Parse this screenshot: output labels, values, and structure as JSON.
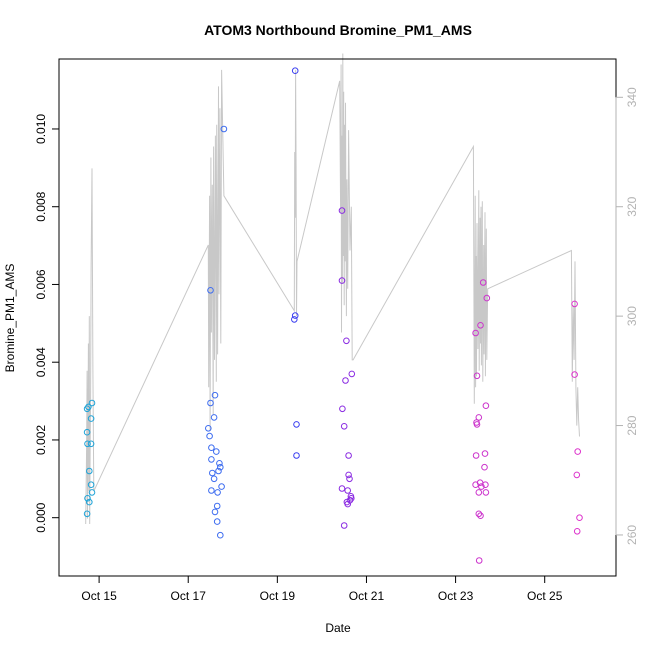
{
  "chart_data": {
    "type": "scatter",
    "title": "ATOM3 Northbound Bromine_PM1_AMS",
    "xlabel": "Date",
    "ylabel": "Bromine_PM1_AMS",
    "xlim": [
      14.1,
      26.6
    ],
    "ylim": [
      -0.0015,
      0.0118
    ],
    "y2lim": [
      252.5,
      347
    ],
    "x_ticks": [
      {
        "value": 15,
        "label": "Oct 15"
      },
      {
        "value": 17,
        "label": "Oct 17"
      },
      {
        "value": 19,
        "label": "Oct 19"
      },
      {
        "value": 21,
        "label": "Oct 21"
      },
      {
        "value": 23,
        "label": "Oct 23"
      },
      {
        "value": 25,
        "label": "Oct 25"
      }
    ],
    "y_ticks": [
      {
        "value": 0.0,
        "label": "0.000"
      },
      {
        "value": 0.002,
        "label": "0.002"
      },
      {
        "value": 0.004,
        "label": "0.004"
      },
      {
        "value": 0.006,
        "label": "0.006"
      },
      {
        "value": 0.008,
        "label": "0.008"
      },
      {
        "value": 0.01,
        "label": "0.010"
      }
    ],
    "y2_ticks": [
      {
        "value": 260,
        "label": "260"
      },
      {
        "value": 280,
        "label": "280"
      },
      {
        "value": 300,
        "label": "300"
      },
      {
        "value": 320,
        "label": "320"
      },
      {
        "value": 340,
        "label": "340"
      }
    ],
    "points": [
      {
        "x": 14.73,
        "y": 0.0028,
        "color": "#1fa4d8"
      },
      {
        "x": 14.73,
        "y": 0.0022,
        "color": "#1fa4d8"
      },
      {
        "x": 14.74,
        "y": 0.0019,
        "color": "#1fa4d8"
      },
      {
        "x": 14.74,
        "y": 0.0005,
        "color": "#1fa4d8"
      },
      {
        "x": 14.73,
        "y": 0.0001,
        "color": "#1fa4d8"
      },
      {
        "x": 14.78,
        "y": 0.0004,
        "color": "#1fa4d8"
      },
      {
        "x": 14.78,
        "y": 0.0012,
        "color": "#1fa4d8"
      },
      {
        "x": 14.76,
        "y": 0.00285,
        "color": "#1fa4d8"
      },
      {
        "x": 14.82,
        "y": 0.0019,
        "color": "#1fa4d8"
      },
      {
        "x": 14.82,
        "y": 0.00255,
        "color": "#1fa4d8"
      },
      {
        "x": 14.84,
        "y": 0.00295,
        "color": "#1fa4d8"
      },
      {
        "x": 14.82,
        "y": 0.00085,
        "color": "#1fa4d8"
      },
      {
        "x": 14.84,
        "y": 0.00065,
        "color": "#1fa4d8"
      },
      {
        "x": 17.5,
        "y": 0.00585,
        "color": "#3e6df0"
      },
      {
        "x": 17.6,
        "y": 0.00315,
        "color": "#3e6df0"
      },
      {
        "x": 17.5,
        "y": 0.00295,
        "color": "#3e6df0"
      },
      {
        "x": 17.58,
        "y": 0.00258,
        "color": "#3e6df0"
      },
      {
        "x": 17.45,
        "y": 0.0023,
        "color": "#3e6df0"
      },
      {
        "x": 17.48,
        "y": 0.0021,
        "color": "#3e6df0"
      },
      {
        "x": 17.52,
        "y": 0.0018,
        "color": "#3e6df0"
      },
      {
        "x": 17.63,
        "y": 0.0017,
        "color": "#3e6df0"
      },
      {
        "x": 17.52,
        "y": 0.0015,
        "color": "#3e6df0"
      },
      {
        "x": 17.7,
        "y": 0.0014,
        "color": "#3e6df0"
      },
      {
        "x": 17.72,
        "y": 0.0013,
        "color": "#3e6df0"
      },
      {
        "x": 17.54,
        "y": 0.00115,
        "color": "#3e6df0"
      },
      {
        "x": 17.68,
        "y": 0.0012,
        "color": "#3e6df0"
      },
      {
        "x": 17.58,
        "y": 0.001,
        "color": "#3e6df0"
      },
      {
        "x": 17.75,
        "y": 0.0008,
        "color": "#3e6df0"
      },
      {
        "x": 17.52,
        "y": 0.0007,
        "color": "#3e6df0"
      },
      {
        "x": 17.66,
        "y": 0.00065,
        "color": "#3e6df0"
      },
      {
        "x": 17.65,
        "y": 0.0003,
        "color": "#3e6df0"
      },
      {
        "x": 17.6,
        "y": 0.00015,
        "color": "#3e6df0"
      },
      {
        "x": 17.65,
        "y": -0.0001,
        "color": "#3e6df0"
      },
      {
        "x": 17.72,
        "y": -0.00045,
        "color": "#3e6df0"
      },
      {
        "x": 17.8,
        "y": 0.01,
        "color": "#3e6df0"
      },
      {
        "x": 19.4,
        "y": 0.0115,
        "color": "#3b3ff0"
      },
      {
        "x": 19.4,
        "y": 0.0052,
        "color": "#3b3ff0"
      },
      {
        "x": 19.38,
        "y": 0.0051,
        "color": "#3b3ff0"
      },
      {
        "x": 19.43,
        "y": 0.0024,
        "color": "#3b3ff0"
      },
      {
        "x": 19.43,
        "y": 0.0016,
        "color": "#3b3ff0"
      },
      {
        "x": 20.45,
        "y": 0.0079,
        "color": "#8a2be2"
      },
      {
        "x": 20.45,
        "y": 0.0061,
        "color": "#8a2be2"
      },
      {
        "x": 20.55,
        "y": 0.00455,
        "color": "#8a2be2"
      },
      {
        "x": 20.67,
        "y": 0.0037,
        "color": "#8a2be2"
      },
      {
        "x": 20.53,
        "y": 0.00353,
        "color": "#8a2be2"
      },
      {
        "x": 20.46,
        "y": 0.0028,
        "color": "#8a2be2"
      },
      {
        "x": 20.5,
        "y": 0.00235,
        "color": "#8a2be2"
      },
      {
        "x": 20.6,
        "y": 0.0016,
        "color": "#8a2be2"
      },
      {
        "x": 20.6,
        "y": 0.0011,
        "color": "#8a2be2"
      },
      {
        "x": 20.62,
        "y": 0.001,
        "color": "#8a2be2"
      },
      {
        "x": 20.45,
        "y": 0.00075,
        "color": "#8a2be2"
      },
      {
        "x": 20.58,
        "y": 0.0007,
        "color": "#8a2be2"
      },
      {
        "x": 20.65,
        "y": 0.00055,
        "color": "#8a2be2"
      },
      {
        "x": 20.66,
        "y": 0.0005,
        "color": "#8a2be2"
      },
      {
        "x": 20.63,
        "y": 0.00045,
        "color": "#8a2be2"
      },
      {
        "x": 20.56,
        "y": 0.0004,
        "color": "#8a2be2"
      },
      {
        "x": 20.58,
        "y": 0.00035,
        "color": "#8a2be2"
      },
      {
        "x": 20.5,
        "y": -0.0002,
        "color": "#8a2be2"
      },
      {
        "x": 23.62,
        "y": 0.00605,
        "color": "#cc33cc"
      },
      {
        "x": 23.7,
        "y": 0.00565,
        "color": "#cc33cc"
      },
      {
        "x": 23.56,
        "y": 0.00495,
        "color": "#cc33cc"
      },
      {
        "x": 23.45,
        "y": 0.00475,
        "color": "#cc33cc"
      },
      {
        "x": 23.48,
        "y": 0.00365,
        "color": "#cc33cc"
      },
      {
        "x": 23.68,
        "y": 0.00288,
        "color": "#cc33cc"
      },
      {
        "x": 23.52,
        "y": 0.00258,
        "color": "#cc33cc"
      },
      {
        "x": 23.47,
        "y": 0.00245,
        "color": "#cc33cc"
      },
      {
        "x": 23.48,
        "y": 0.0024,
        "color": "#cc33cc"
      },
      {
        "x": 23.46,
        "y": 0.0016,
        "color": "#cc33cc"
      },
      {
        "x": 23.66,
        "y": 0.00165,
        "color": "#cc33cc"
      },
      {
        "x": 23.65,
        "y": 0.0013,
        "color": "#cc33cc"
      },
      {
        "x": 23.45,
        "y": 0.00085,
        "color": "#cc33cc"
      },
      {
        "x": 23.55,
        "y": 0.0009,
        "color": "#cc33cc"
      },
      {
        "x": 23.58,
        "y": 0.0008,
        "color": "#cc33cc"
      },
      {
        "x": 23.52,
        "y": 0.00065,
        "color": "#cc33cc"
      },
      {
        "x": 23.67,
        "y": 0.00085,
        "color": "#cc33cc"
      },
      {
        "x": 23.68,
        "y": 0.00065,
        "color": "#cc33cc"
      },
      {
        "x": 23.52,
        "y": 0.0001,
        "color": "#cc33cc"
      },
      {
        "x": 23.56,
        "y": 5e-05,
        "color": "#cc33cc"
      },
      {
        "x": 23.53,
        "y": -0.0011,
        "color": "#cc33cc"
      },
      {
        "x": 25.67,
        "y": 0.0055,
        "color": "#dd33cc"
      },
      {
        "x": 25.67,
        "y": 0.00368,
        "color": "#dd33cc"
      },
      {
        "x": 25.74,
        "y": 0.0017,
        "color": "#dd33cc"
      },
      {
        "x": 25.72,
        "y": 0.0011,
        "color": "#dd33cc"
      },
      {
        "x": 25.78,
        "y": 0.0,
        "color": "#dd33cc"
      },
      {
        "x": 25.73,
        "y": -0.00035,
        "color": "#dd33cc"
      }
    ],
    "secondary_series": {
      "name": "right axis trace",
      "color": "#c8c8c8",
      "x": [
        14.7,
        14.72,
        14.73,
        14.74,
        14.75,
        14.76,
        14.77,
        14.78,
        14.79,
        14.8,
        14.81,
        14.82,
        14.84,
        14.86,
        14.88,
        17.45,
        17.46,
        17.48,
        17.49,
        17.51,
        17.52,
        17.54,
        17.56,
        17.57,
        17.59,
        17.61,
        17.63,
        17.64,
        17.66,
        17.68,
        17.69,
        17.71,
        17.73,
        17.75,
        17.8,
        19.38,
        19.39,
        19.4,
        19.41,
        19.42,
        19.43,
        19.44,
        20.4,
        20.42,
        20.43,
        20.44,
        20.45,
        20.46,
        20.47,
        20.48,
        20.49,
        20.5,
        20.51,
        20.52,
        20.53,
        20.55,
        20.56,
        20.58,
        20.6,
        20.63,
        20.66,
        20.68,
        20.7,
        23.4,
        23.42,
        23.44,
        23.45,
        23.46,
        23.47,
        23.48,
        23.5,
        23.52,
        23.53,
        23.55,
        23.56,
        23.57,
        23.58,
        23.6,
        23.61,
        23.63,
        23.64,
        23.66,
        23.67,
        23.69,
        23.7,
        23.72,
        25.6,
        25.62,
        25.64,
        25.66,
        25.68,
        25.7,
        25.72,
        25.74,
        25.76,
        25.78
      ],
      "y": [
        262,
        276,
        290,
        263,
        281,
        295,
        268,
        300,
        262,
        277,
        285,
        309,
        327,
        290,
        268,
        313,
        287,
        322,
        279,
        329,
        297,
        324,
        282,
        331,
        292,
        333,
        288,
        335,
        293,
        342,
        304,
        338,
        295,
        345,
        322,
        301,
        330,
        318,
        345,
        327,
        300,
        310,
        343,
        319,
        346,
        297,
        333,
        306,
        348,
        311,
        341,
        302,
        335,
        310,
        339,
        300,
        325,
        305,
        334,
        312,
        320,
        292,
        292,
        331,
        284,
        322,
        287,
        311,
        289,
        317,
        294,
        323,
        290,
        318,
        295,
        320,
        291,
        321,
        288,
        313,
        293,
        319,
        289,
        316,
        292,
        305,
        312,
        288,
        302,
        292,
        310,
        287,
        280,
        287,
        281,
        278
      ]
    }
  }
}
